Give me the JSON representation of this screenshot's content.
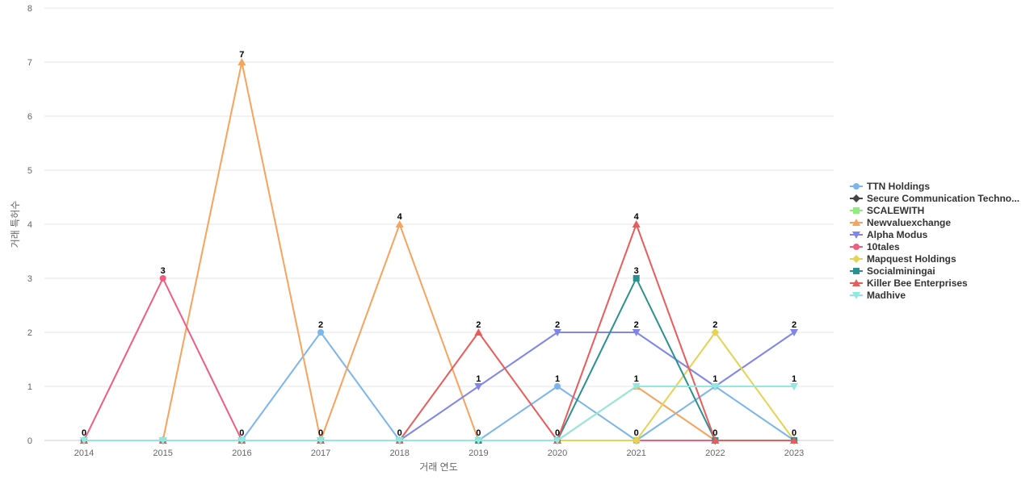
{
  "chart_data": {
    "type": "line",
    "title": "",
    "xlabel": "거래 연도",
    "ylabel": "거래 특허수",
    "categories": [
      "2014",
      "2015",
      "2016",
      "2017",
      "2018",
      "2019",
      "2020",
      "2021",
      "2022",
      "2023"
    ],
    "ylim": [
      0,
      8
    ],
    "yticks": [
      0,
      1,
      2,
      3,
      4,
      5,
      6,
      7,
      8
    ],
    "grid": true,
    "legend_position": "right",
    "series": [
      {
        "name": "TTN Holdings",
        "legend_label": "TTN Holdings",
        "color": "#7cb5ec",
        "marker": "circle",
        "values": [
          0,
          0,
          0,
          2,
          0,
          0,
          1,
          0,
          1,
          0
        ],
        "labels": [
          "",
          "",
          "",
          "2",
          "",
          "",
          "1",
          "",
          "1",
          ""
        ]
      },
      {
        "name": "Secure Communication Technologies",
        "legend_label": "Secure Communication Techno...",
        "color": "#434348",
        "marker": "diamond",
        "values": [
          0,
          0,
          0,
          0,
          0,
          0,
          0,
          0,
          0,
          0
        ],
        "labels": [
          "",
          "",
          "",
          "",
          "",
          "",
          "",
          "",
          "",
          ""
        ]
      },
      {
        "name": "SCALEWITH",
        "legend_label": "SCALEWITH",
        "color": "#90ed7d",
        "marker": "square",
        "values": [
          0,
          0,
          0,
          0,
          0,
          0,
          0,
          0,
          0,
          0
        ],
        "labels": [
          "",
          "",
          "",
          "",
          "",
          "",
          "",
          "",
          "",
          ""
        ]
      },
      {
        "name": "Newvaluexchange",
        "legend_label": "Newvaluexchange",
        "color": "#f7a35c",
        "marker": "triangle",
        "values": [
          0,
          0,
          7,
          0,
          4,
          0,
          0,
          1,
          0,
          0
        ],
        "labels": [
          "",
          "",
          "7",
          "",
          "4",
          "",
          "",
          "",
          "",
          ""
        ]
      },
      {
        "name": "Alpha Modus",
        "legend_label": "Alpha Modus",
        "color": "#8085e9",
        "marker": "triangle-down",
        "values": [
          0,
          0,
          0,
          0,
          0,
          1,
          2,
          2,
          1,
          2
        ],
        "labels": [
          "",
          "",
          "",
          "",
          "",
          "1",
          "2",
          "2",
          "",
          "2"
        ]
      },
      {
        "name": "10tales",
        "legend_label": "10tales",
        "color": "#f15c80",
        "marker": "circle",
        "values": [
          0,
          3,
          0,
          0,
          0,
          0,
          0,
          0,
          0,
          0
        ],
        "labels": [
          "0",
          "3",
          "0",
          "0",
          "0",
          "0",
          "0",
          "0",
          "0",
          "0"
        ]
      },
      {
        "name": "Mapquest Holdings",
        "legend_label": "Mapquest Holdings",
        "color": "#e4d354",
        "marker": "diamond",
        "values": [
          0,
          0,
          0,
          0,
          0,
          0,
          0,
          0,
          2,
          0
        ],
        "labels": [
          "",
          "",
          "",
          "",
          "",
          "",
          "",
          "",
          "2",
          ""
        ]
      },
      {
        "name": "Socialminingai",
        "legend_label": "Socialminingai",
        "color": "#2b908f",
        "marker": "square",
        "values": [
          0,
          0,
          0,
          0,
          0,
          0,
          0,
          3,
          0,
          0
        ],
        "labels": [
          "",
          "",
          "",
          "",
          "",
          "",
          "",
          "3",
          "",
          ""
        ]
      },
      {
        "name": "Killer Bee Enterprises",
        "legend_label": "Killer Bee Enterprises",
        "color": "#e85c5c",
        "marker": "triangle",
        "values": [
          0,
          0,
          0,
          0,
          0,
          2,
          0,
          4,
          0,
          0
        ],
        "labels": [
          "",
          "",
          "",
          "",
          "",
          "2",
          "",
          "4",
          "",
          ""
        ]
      },
      {
        "name": "Madhive",
        "legend_label": "Madhive",
        "color": "#91e8e1",
        "marker": "triangle-down",
        "values": [
          0,
          0,
          0,
          0,
          0,
          0,
          0,
          1,
          1,
          1
        ],
        "labels": [
          "",
          "",
          "",
          "",
          "",
          "",
          "",
          "1",
          "",
          "1"
        ]
      }
    ]
  }
}
